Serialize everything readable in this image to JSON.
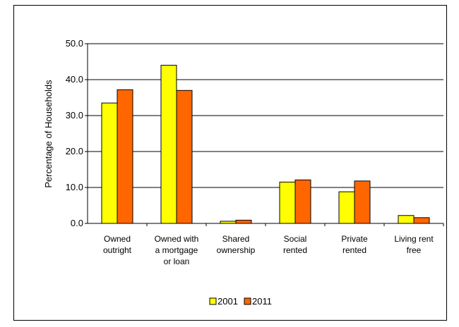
{
  "chart_data": {
    "type": "bar",
    "ylabel": "Percentage of Households",
    "xlabel": "",
    "ylim": [
      0,
      50
    ],
    "yticks": [
      "0.0",
      "10.0",
      "20.0",
      "30.0",
      "40.0",
      "50.0"
    ],
    "grid": true,
    "legend_position": "bottom",
    "categories": [
      [
        "Owned",
        "outright"
      ],
      [
        "Owned with",
        "a mortgage",
        "or loan"
      ],
      [
        "Shared",
        "ownership"
      ],
      [
        "Social",
        "rented"
      ],
      [
        "Private",
        "rented"
      ],
      [
        "Living rent",
        "free"
      ]
    ],
    "series": [
      {
        "name": "2001",
        "color": "#FFFF00",
        "values": [
          33.5,
          44.0,
          0.6,
          11.5,
          8.8,
          2.2
        ]
      },
      {
        "name": "2011",
        "color": "#FF6600",
        "values": [
          37.2,
          37.0,
          0.9,
          12.1,
          11.8,
          1.6
        ]
      }
    ]
  }
}
